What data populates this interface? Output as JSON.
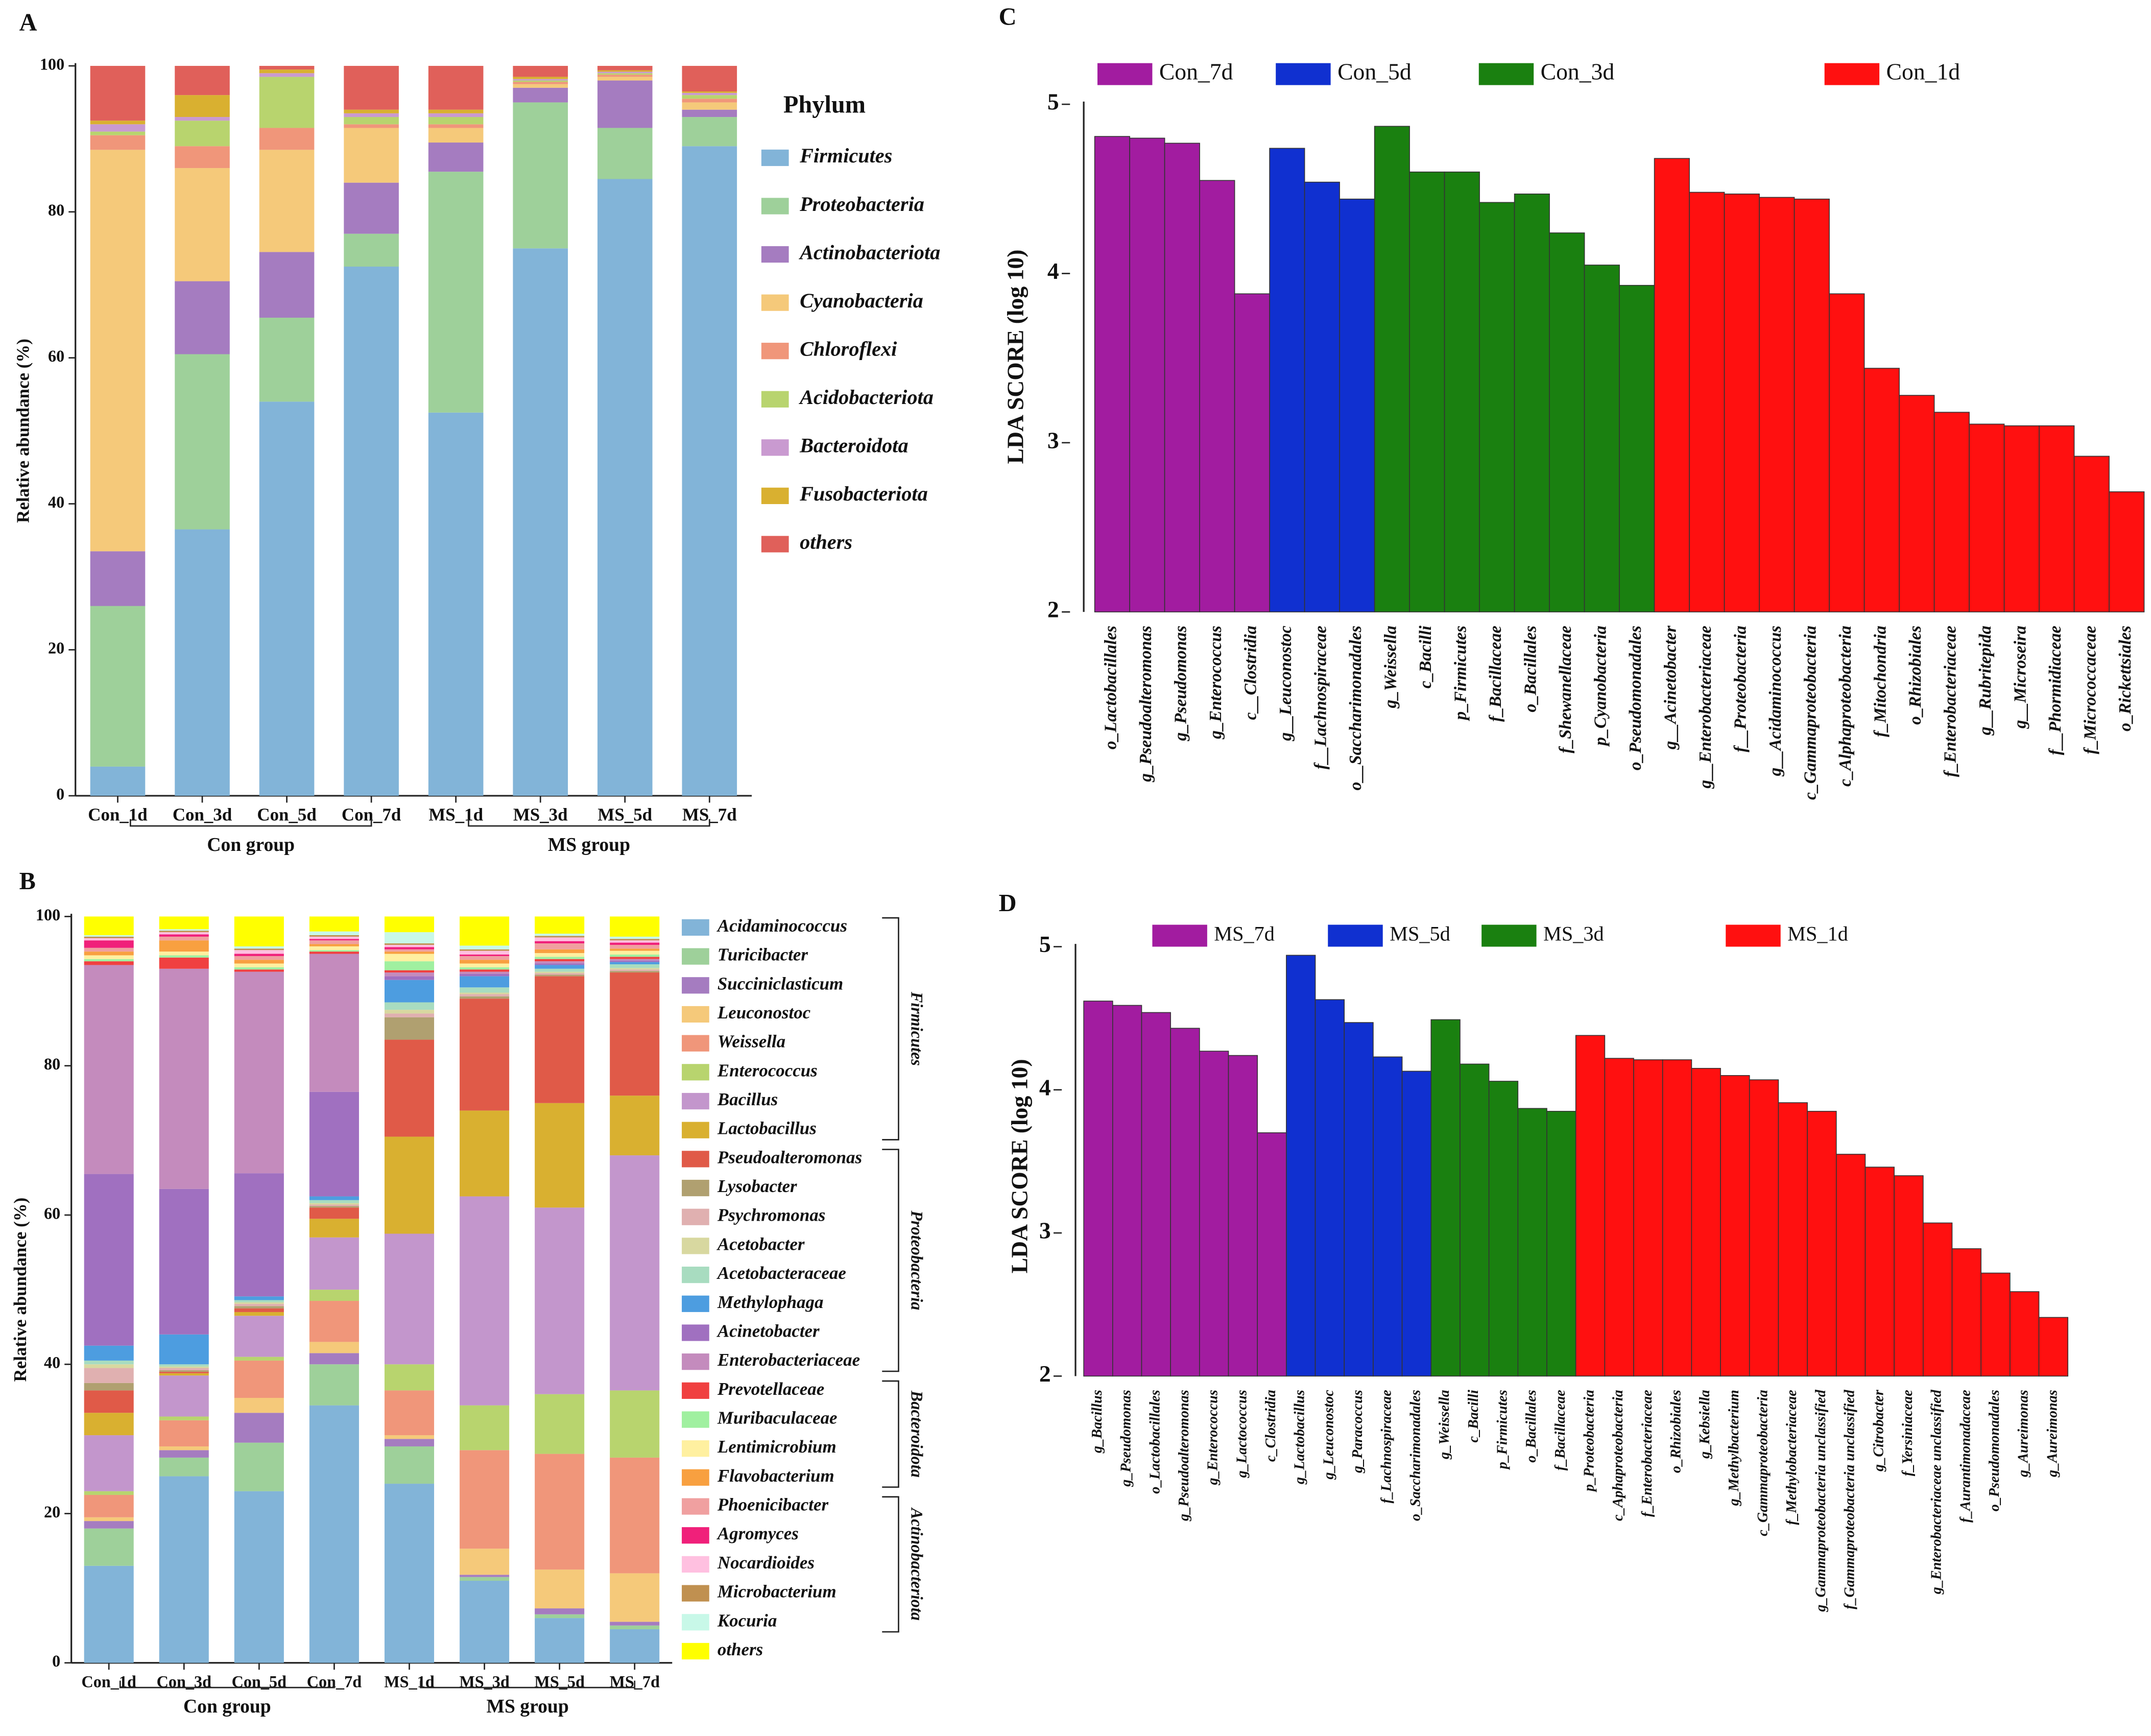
{
  "chart_data": [
    {
      "panel": "A",
      "type": "stacked_bar",
      "ylabel": "Relative abundance (%)",
      "legend_title": "Phylum",
      "categories": [
        "Con_1d",
        "Con_3d",
        "Con_5d",
        "Con_7d",
        "MS_1d",
        "MS_3d",
        "MS_5d",
        "MS_7d"
      ],
      "group_labels": [
        "Con group",
        "MS group"
      ],
      "ylim": [
        0,
        100
      ],
      "yticks": [
        0,
        20,
        40,
        60,
        80,
        100
      ],
      "series": [
        {
          "name": "Firmicutes",
          "color": "#82b4d8",
          "values": [
            4,
            36.5,
            54,
            72.5,
            52.5,
            75,
            84.5,
            89
          ]
        },
        {
          "name": "Proteobacteria",
          "color": "#9ed09a",
          "values": [
            22,
            24,
            11.5,
            4.5,
            33,
            20,
            7,
            4
          ]
        },
        {
          "name": "Actinobacteriota",
          "color": "#a57cc0",
          "values": [
            7.5,
            10,
            9,
            7,
            4,
            2,
            6.5,
            1
          ]
        },
        {
          "name": "Cyanobacteria",
          "color": "#f5c97a",
          "values": [
            55,
            15.5,
            14,
            7.5,
            2,
            0.5,
            0.5,
            1
          ]
        },
        {
          "name": "Chloroflexi",
          "color": "#f0967a",
          "values": [
            2,
            3,
            3,
            0.5,
            0.5,
            0.3,
            0.3,
            0.5
          ]
        },
        {
          "name": "Acidobacteriota",
          "color": "#b8d46e",
          "values": [
            0.5,
            3.5,
            7,
            1,
            1,
            0.2,
            0.2,
            0.5
          ]
        },
        {
          "name": "Bacteroidota",
          "color": "#c99ad0",
          "values": [
            1,
            0.5,
            0.5,
            0.5,
            0.5,
            0.2,
            0.2,
            0.3
          ]
        },
        {
          "name": "Fusobacteriota",
          "color": "#d9b030",
          "values": [
            0.5,
            3,
            0.5,
            0.5,
            0.5,
            0.3,
            0.2,
            0.2
          ]
        },
        {
          "name": "others",
          "color": "#e0605a",
          "values": [
            7.5,
            4,
            0.5,
            6,
            6,
            1.5,
            0.6,
            3.5
          ]
        }
      ]
    },
    {
      "panel": "B",
      "type": "stacked_bar",
      "ylabel": "Relative abundance (%)",
      "categories": [
        "Con_1d",
        "Con_3d",
        "Con_5d",
        "Con_7d",
        "MS_1d",
        "MS_3d",
        "MS_5d",
        "MS_7d"
      ],
      "group_labels": [
        "Con group",
        "MS group"
      ],
      "ylim": [
        0,
        100
      ],
      "yticks": [
        0,
        20,
        40,
        60,
        80,
        100
      ],
      "series": [
        {
          "name": "Acidaminococcus",
          "group": "Firmicutes",
          "color": "#82b4d8",
          "values": [
            13,
            25,
            23,
            34.5,
            24,
            11,
            6,
            4.5
          ]
        },
        {
          "name": "Turicibacter",
          "group": "Firmicutes",
          "color": "#9ed09a",
          "values": [
            5,
            2.5,
            6.5,
            5.5,
            5,
            0.5,
            0.5,
            0.5
          ]
        },
        {
          "name": "Succiniclasticum",
          "group": "Firmicutes",
          "color": "#a57cc0",
          "values": [
            1,
            1,
            4,
            1.5,
            1,
            0.3,
            0.8,
            0.5
          ]
        },
        {
          "name": "Leuconostoc",
          "group": "Firmicutes",
          "color": "#f5c97a",
          "values": [
            0.5,
            0.5,
            2,
            1.5,
            0.5,
            3.5,
            5.2,
            6.5
          ]
        },
        {
          "name": "Weissella",
          "group": "Firmicutes",
          "color": "#f0967a",
          "values": [
            3,
            3.5,
            5,
            5.5,
            6,
            13.2,
            15.5,
            15.5
          ]
        },
        {
          "name": "Enterococcus",
          "group": "Firmicutes",
          "color": "#b8d46e",
          "values": [
            0.5,
            0.5,
            0.5,
            1.5,
            3.5,
            6,
            8,
            9
          ]
        },
        {
          "name": "Bacillus",
          "group": "Firmicutes",
          "color": "#c396cc",
          "values": [
            7.5,
            5.5,
            5.5,
            7,
            17.5,
            28,
            25,
            31.5
          ]
        },
        {
          "name": "Lactobacillus",
          "group": "Firmicutes",
          "color": "#d9b030",
          "values": [
            3,
            0.3,
            0.5,
            2.5,
            13,
            11.5,
            14,
            8
          ]
        },
        {
          "name": "Pseudoalteromonas",
          "group": "Proteobacteria",
          "color": "#e05a48",
          "values": [
            3,
            0.2,
            0.5,
            1.5,
            13,
            15,
            17,
            16.5
          ]
        },
        {
          "name": "Lysobacter",
          "group": "Proteobacteria",
          "color": "#b0a070",
          "values": [
            1,
            0.2,
            0.3,
            0.2,
            3,
            0.3,
            0.2,
            0.2
          ]
        },
        {
          "name": "Psychromonas",
          "group": "Proteobacteria",
          "color": "#e0b0b0",
          "values": [
            2,
            0.3,
            0.3,
            0.2,
            0.5,
            0.3,
            0.2,
            0.2
          ]
        },
        {
          "name": "Acetobacter",
          "group": "Proteobacteria",
          "color": "#d8d8a0",
          "values": [
            0.5,
            0.2,
            0.2,
            0.2,
            0.5,
            0.2,
            0.2,
            0.2
          ]
        },
        {
          "name": "Acetobacteraceae",
          "group": "Proteobacteria",
          "color": "#a8dcc0",
          "values": [
            0.5,
            0.3,
            0.3,
            0.4,
            1,
            0.7,
            0.4,
            0.5
          ]
        },
        {
          "name": "Methylophaga",
          "group": "Proteobacteria",
          "color": "#4d9de0",
          "values": [
            2,
            4,
            0.5,
            0.5,
            3,
            1.5,
            0.5,
            0.3
          ]
        },
        {
          "name": "Acinetobacter",
          "group": "Proteobacteria",
          "color": "#a070c0",
          "values": [
            23,
            19.5,
            16.5,
            14,
            0.5,
            0.3,
            0.2,
            0.2
          ]
        },
        {
          "name": "Enterobacteriaceae",
          "group": "Proteobacteria",
          "color": "#c48bbd",
          "values": [
            28,
            29.5,
            27,
            18.5,
            0.5,
            0.3,
            0.3,
            0.2
          ]
        },
        {
          "name": "Prevotellaceae",
          "group": "Bacteroidota",
          "color": "#f04040",
          "values": [
            0.5,
            1.5,
            0.3,
            0.3,
            0.3,
            0.3,
            0.3,
            0.3
          ]
        },
        {
          "name": "Muribaculaceae",
          "group": "Bacteroidota",
          "color": "#a0f0a0",
          "values": [
            0.3,
            0.3,
            0.3,
            0.2,
            1.2,
            0.3,
            0.3,
            0.3
          ]
        },
        {
          "name": "Lentimicrobium",
          "group": "Bacteroidota",
          "color": "#fff0a0",
          "values": [
            0.5,
            0.5,
            0.5,
            0.5,
            1,
            0.5,
            0.5,
            0.5
          ]
        },
        {
          "name": "Flavobacterium",
          "group": "Bacteroidota",
          "color": "#f8a040",
          "values": [
            0.5,
            1.5,
            0.5,
            0.3,
            0.3,
            0.5,
            0.5,
            0.3
          ]
        },
        {
          "name": "Phoenicibacter",
          "group": "Actinobacteriota",
          "color": "#f0a0a0",
          "values": [
            0.5,
            0.5,
            0.5,
            0.5,
            0.3,
            0.5,
            0.8,
            0.5
          ]
        },
        {
          "name": "Agromyces",
          "group": "Actinobacteriota",
          "color": "#f0207a",
          "values": [
            1,
            0.3,
            0.3,
            0.2,
            0.3,
            0.2,
            0.3,
            0.3
          ]
        },
        {
          "name": "Nocardioides",
          "group": "Actinobacteriota",
          "color": "#ffc0e0",
          "values": [
            0.3,
            0.3,
            0.5,
            0.3,
            0.3,
            0.5,
            0.5,
            0.3
          ]
        },
        {
          "name": "Microbacterium",
          "group": "Actinobacteriota",
          "color": "#c09050",
          "values": [
            0.2,
            0.2,
            0.2,
            0.2,
            0.2,
            0.2,
            0.2,
            0.2
          ]
        },
        {
          "name": "Kocuria",
          "group": "Actinobacteriota",
          "color": "#c8f8e8",
          "values": [
            0.2,
            0.2,
            0.3,
            0.5,
            1.5,
            0.5,
            0.3,
            0.3
          ]
        },
        {
          "name": "others",
          "color": "#ffff00",
          "values": [
            2.5,
            1.7,
            4,
            2,
            2.1,
            3.9,
            2.3,
            2.7
          ]
        }
      ]
    },
    {
      "panel": "C",
      "type": "bar",
      "ylabel": "LDA SCORE (log 10)",
      "ylim": [
        2,
        5
      ],
      "yticks": [
        2,
        3,
        4,
        5
      ],
      "categories": [
        "o_Lactobacillales",
        "g_Pseudoalteromonas",
        "g_Pseudomonas",
        "g_Enterococcus",
        "c__Clostridia",
        "g__Leuconostoc",
        "f__Lachnospiraceae",
        "o__Saccharimonadales",
        "g_Weissella",
        "c_Bacilli",
        "p_Firmicutes",
        "f_Bacillaceae",
        "o_Bacillales",
        "f_Shewanellaceae",
        "p_Cyanobacteria",
        "o_Pseudomonadales",
        "g__Acinetobacter",
        "g__Enterobacteriaceae",
        "f__Proteobacteria",
        "g__Acidaminococcus",
        "c_Gammaproteobacteria",
        "c_Alphaproteobacteria",
        "f_Mitochondria",
        "o_Rhizobiales",
        "f_Enterobacteriaceae",
        "g__Rubritepida",
        "g__Microseira",
        "f__Phormidiaceae",
        "f_Micrococcaceae",
        "o_Rickettsiales"
      ],
      "series": [
        {
          "name": "Con_7d",
          "color": "#a21ca0",
          "values": [
            4.81,
            4.8,
            4.77,
            4.55,
            3.88,
            null,
            null,
            null,
            null,
            null,
            null,
            null,
            null,
            null,
            null,
            null,
            null,
            null,
            null,
            null,
            null,
            null,
            null,
            null,
            null,
            null,
            null,
            null,
            null,
            null
          ]
        },
        {
          "name": "Con_5d",
          "color": "#1030d0",
          "values": [
            null,
            null,
            null,
            null,
            null,
            4.74,
            4.54,
            4.44,
            null,
            null,
            null,
            null,
            null,
            null,
            null,
            null,
            null,
            null,
            null,
            null,
            null,
            null,
            null,
            null,
            null,
            null,
            null,
            null,
            null,
            null
          ]
        },
        {
          "name": "Con_3d",
          "color": "#1a8010",
          "values": [
            null,
            null,
            null,
            null,
            null,
            null,
            null,
            null,
            4.87,
            4.6,
            4.6,
            4.42,
            4.47,
            4.24,
            4.05,
            3.93,
            null,
            null,
            null,
            null,
            null,
            null,
            null,
            null,
            null,
            null,
            null,
            null,
            null,
            null
          ]
        },
        {
          "name": "Con_1d",
          "color": "#ff1010",
          "values": [
            null,
            null,
            null,
            null,
            null,
            null,
            null,
            null,
            null,
            null,
            null,
            null,
            null,
            null,
            null,
            null,
            4.68,
            4.48,
            4.47,
            4.45,
            4.44,
            3.88,
            3.44,
            3.28,
            3.18,
            3.11,
            3.1,
            3.1,
            2.92,
            2.71
          ]
        }
      ]
    },
    {
      "panel": "D",
      "type": "bar",
      "ylabel": "LDA SCORE (log 10)",
      "ylim": [
        2,
        5
      ],
      "yticks": [
        2,
        3,
        4,
        5
      ],
      "categories": [
        "g_Bacillus",
        "g_Pseudomonas",
        "o_Lactobacillales",
        "g_Pseudoalteromonas",
        "g_Enterococcus",
        "g_Lactococcus",
        "c_Clostridia",
        "g_Lactobacillus",
        "g_Leuconostoc",
        "g_Paracoccus",
        "f_Lachnospiraceae",
        "o_Saccharimonadales",
        "g_Weissella",
        "c_Bacilli",
        "p_Firmicutes",
        "o_Bacillales",
        "f_Bacillaceae",
        "p_Proteobacteria",
        "c_Aphaproteobacteria",
        "f_Enterobacteriaceae",
        "o_Rhizobiales",
        "g_Kebsiella",
        "g_Methylbacterium",
        "c_Gammaproteobacteria",
        "f_Methylobacteriaceae",
        "g_Gammaproteobacteria unclassified",
        "f_Gammaproteobacteria unclassified",
        "g_Citrobacter",
        "f_Yersiniaceae",
        "g_Enterobacteriaceae unclassified",
        "f_Aurantimonadaceae",
        "o_Pseudomonadales",
        "g_Aureimonas",
        "g_Aureimonas"
      ],
      "series": [
        {
          "name": "MS_7d",
          "color": "#a21ca0",
          "values": [
            4.62,
            4.59,
            4.54,
            4.43,
            4.27,
            4.24,
            3.7,
            null,
            null,
            null,
            null,
            null,
            null,
            null,
            null,
            null,
            null,
            null,
            null,
            null,
            null,
            null,
            null,
            null,
            null,
            null,
            null,
            null,
            null,
            null,
            null,
            null,
            null,
            null
          ]
        },
        {
          "name": "MS_5d",
          "color": "#1030d0",
          "values": [
            null,
            null,
            null,
            null,
            null,
            null,
            null,
            4.94,
            4.63,
            4.47,
            4.23,
            4.13,
            null,
            null,
            null,
            null,
            null,
            null,
            null,
            null,
            null,
            null,
            null,
            null,
            null,
            null,
            null,
            null,
            null,
            null,
            null,
            null,
            null,
            null
          ]
        },
        {
          "name": "MS_3d",
          "color": "#1a8010",
          "values": [
            null,
            null,
            null,
            null,
            null,
            null,
            null,
            null,
            null,
            null,
            null,
            null,
            4.49,
            4.18,
            4.06,
            3.87,
            3.85,
            null,
            null,
            null,
            null,
            null,
            null,
            null,
            null,
            null,
            null,
            null,
            null,
            null,
            null,
            null,
            null,
            null
          ]
        },
        {
          "name": "MS_1d",
          "color": "#ff1010",
          "values": [
            null,
            null,
            null,
            null,
            null,
            null,
            null,
            null,
            null,
            null,
            null,
            null,
            null,
            null,
            null,
            null,
            null,
            4.38,
            4.22,
            4.21,
            4.21,
            4.15,
            4.1,
            4.07,
            3.91,
            3.85,
            3.55,
            3.46,
            3.4,
            3.07,
            2.89,
            2.72,
            2.59,
            2.41
          ]
        }
      ]
    }
  ]
}
